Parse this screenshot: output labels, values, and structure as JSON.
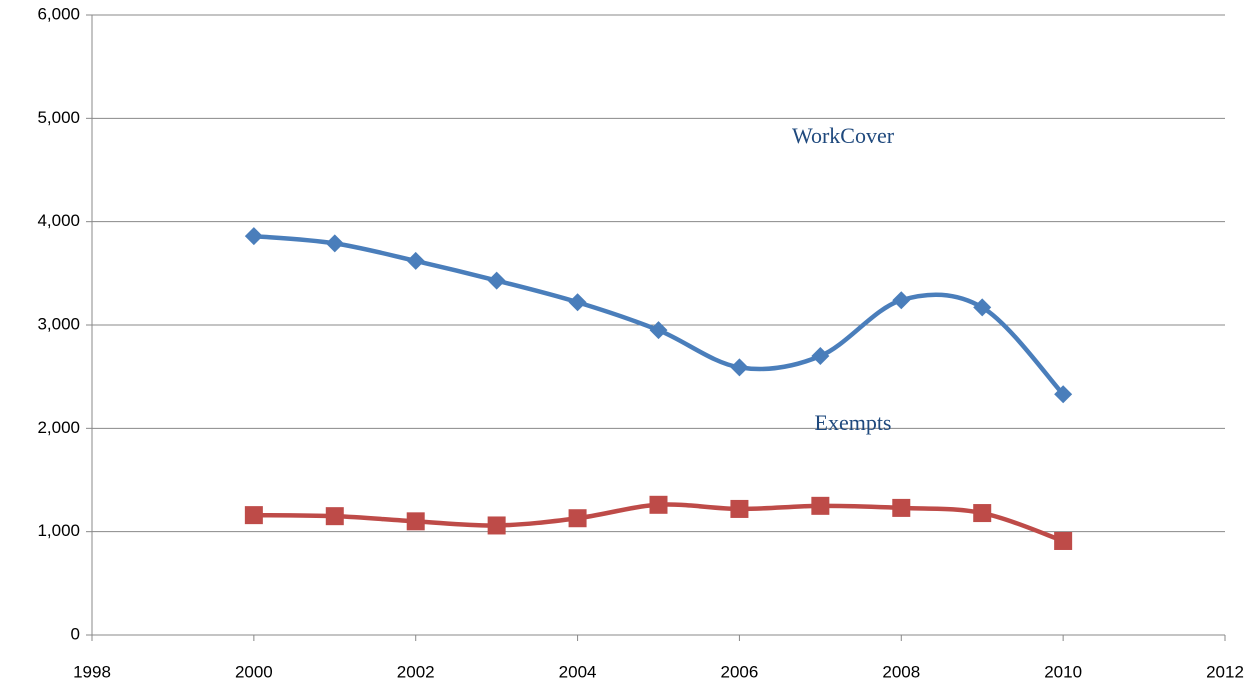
{
  "chart_data": {
    "type": "line",
    "x": [
      2000,
      2001,
      2002,
      2003,
      2004,
      2005,
      2006,
      2007,
      2008,
      2009,
      2010
    ],
    "series": [
      {
        "name": "WorkCover",
        "color": "#4a7ebb",
        "marker": "diamond",
        "values": [
          3860,
          3790,
          3620,
          3430,
          3220,
          2950,
          2590,
          2700,
          3240,
          3170,
          2330
        ]
      },
      {
        "name": "Exempts",
        "color": "#be4b48",
        "marker": "square",
        "values": [
          1160,
          1150,
          1100,
          1060,
          1130,
          1260,
          1220,
          1250,
          1230,
          1180,
          910
        ]
      }
    ],
    "annotations": [
      "WorkCover",
      "Exempts"
    ],
    "xlim": [
      1998,
      2012
    ],
    "xticks": [
      1998,
      2000,
      2002,
      2004,
      2006,
      2008,
      2010,
      2012
    ],
    "ylim": [
      0,
      6000
    ],
    "yticks": [
      0,
      {
        "value": 1000,
        "label": "1,000"
      },
      {
        "value": 2000,
        "label": "2,000"
      },
      {
        "value": 3000,
        "label": "3,000"
      },
      {
        "value": 4000,
        "label": "4,000"
      },
      {
        "value": 5000,
        "label": "5,000"
      },
      {
        "value": 6000,
        "label": "6,000"
      }
    ],
    "grid": true,
    "smooth": true
  }
}
